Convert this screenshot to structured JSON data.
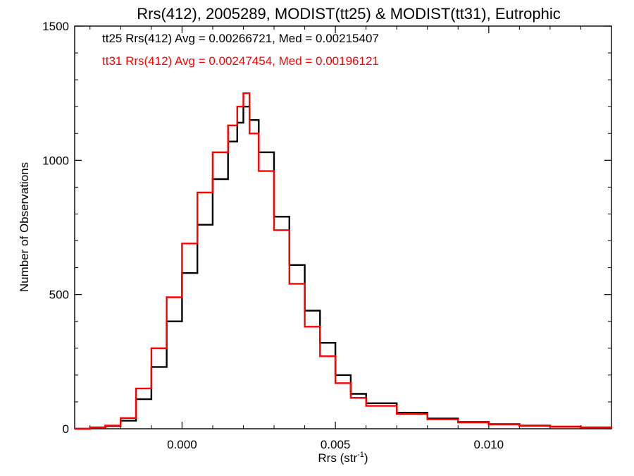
{
  "chart_data": {
    "type": "line",
    "title": "Rrs(412), 2005289, MODIST(tt25) & MODIST(tt31), Eutrophic",
    "xlabel": "Rrs (str",
    "xlabel_sup": "-1",
    "xlabel_close": ")",
    "ylabel": "Number of Observations",
    "xlim": [
      -0.0035,
      0.014
    ],
    "ylim": [
      0,
      1500
    ],
    "xticks": [
      0.0,
      0.005,
      0.01
    ],
    "xtick_labels": [
      "0.000",
      "0.005",
      "0.010"
    ],
    "yticks": [
      0,
      500,
      1000,
      1500
    ],
    "ytick_labels": [
      "0",
      "500",
      "1000",
      "1500"
    ],
    "grid": false,
    "annotations": [
      {
        "text": "tt25 Rrs(412) Avg = 0.00266721, Med = 0.00215407",
        "color": "#000000"
      },
      {
        "text": "tt31 Rrs(412) Avg = 0.00247454, Med = 0.00196121",
        "color": "#ff0000"
      }
    ],
    "series": [
      {
        "color": "#000000",
        "x": [
          -0.0035,
          -0.003,
          -0.0025,
          -0.002,
          -0.0015,
          -0.001,
          -0.0005,
          0.0,
          0.0005,
          0.001,
          0.0015,
          0.0018,
          0.002,
          0.0022,
          0.0025,
          0.003,
          0.0035,
          0.004,
          0.0045,
          0.005,
          0.0055,
          0.006,
          0.007,
          0.008,
          0.009,
          0.01,
          0.011,
          0.012,
          0.013,
          0.014
        ],
        "values": [
          0,
          5,
          10,
          30,
          110,
          230,
          400,
          580,
          760,
          930,
          1070,
          1140,
          1200,
          1150,
          1030,
          790,
          610,
          440,
          320,
          200,
          130,
          95,
          60,
          38,
          25,
          17,
          12,
          8,
          5,
          3
        ]
      },
      {
        "color": "#ff0000",
        "x": [
          -0.0035,
          -0.003,
          -0.0025,
          -0.002,
          -0.0015,
          -0.001,
          -0.0005,
          0.0,
          0.0005,
          0.001,
          0.0015,
          0.0018,
          0.002,
          0.0022,
          0.0025,
          0.003,
          0.0035,
          0.004,
          0.0045,
          0.005,
          0.0055,
          0.006,
          0.007,
          0.008,
          0.009,
          0.01,
          0.011,
          0.012,
          0.013,
          0.014
        ],
        "values": [
          0,
          5,
          12,
          40,
          150,
          300,
          490,
          690,
          880,
          1030,
          1130,
          1200,
          1250,
          1100,
          960,
          740,
          540,
          380,
          270,
          170,
          115,
          85,
          55,
          35,
          23,
          16,
          11,
          7,
          5,
          3
        ]
      }
    ]
  }
}
